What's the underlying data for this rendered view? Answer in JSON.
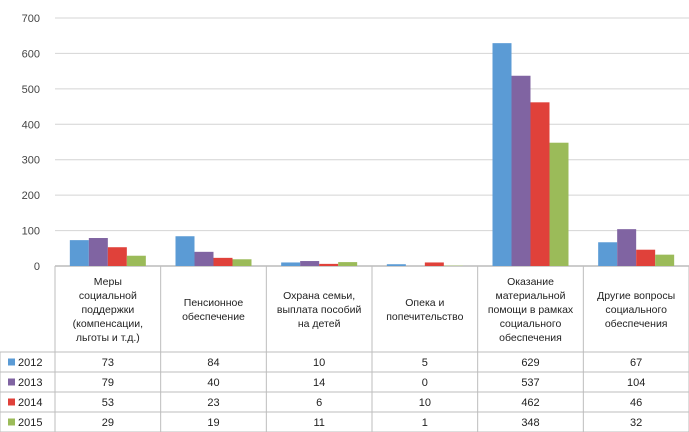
{
  "chart_data": {
    "type": "bar",
    "title": "",
    "xlabel": "",
    "ylabel": "",
    "ylim": [
      0,
      700
    ],
    "yticks": [
      0,
      100,
      200,
      300,
      400,
      500,
      600,
      700
    ],
    "grid": true,
    "legend": "bottom-left data table",
    "categories": [
      [
        "Меры",
        "социальной",
        "поддержки",
        "(компенсации,",
        "льготы и т.д.)"
      ],
      [
        "Пенсионное",
        "обеспечение"
      ],
      [
        "Охрана семьи,",
        "выплата пособий",
        "на детей"
      ],
      [
        "Опека и",
        "попечительство"
      ],
      [
        "Оказание",
        "материальной",
        "помощи в рамках",
        "социального",
        "обеспечения"
      ],
      [
        "Другие вопросы",
        "социального",
        "обеспечения"
      ]
    ],
    "series": [
      {
        "name": "2012",
        "color": "#5b9bd5",
        "values": [
          73,
          84,
          10,
          5,
          629,
          67
        ]
      },
      {
        "name": "2013",
        "color": "#8064a2",
        "values": [
          79,
          40,
          14,
          0,
          537,
          104
        ]
      },
      {
        "name": "2014",
        "color": "#e0413a",
        "values": [
          53,
          23,
          6,
          10,
          462,
          46
        ]
      },
      {
        "name": "2015",
        "color": "#9bbb59",
        "values": [
          29,
          19,
          11,
          1,
          348,
          32
        ]
      }
    ]
  }
}
